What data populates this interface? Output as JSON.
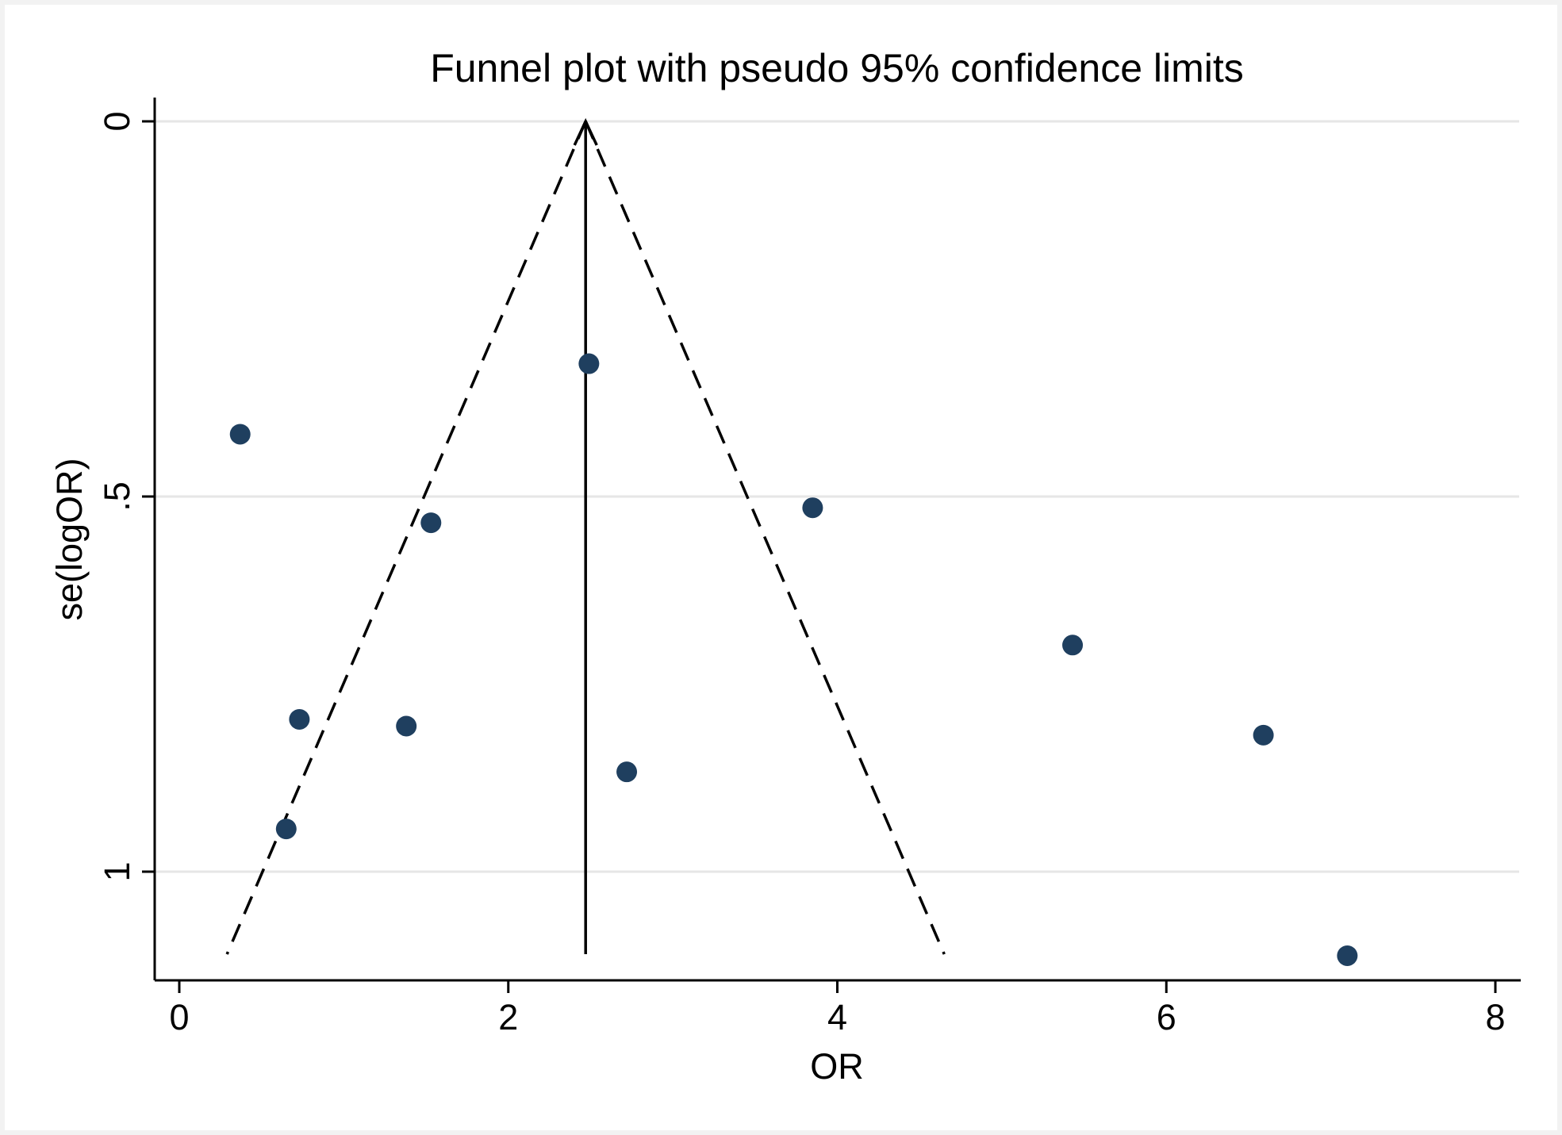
{
  "chart_data": {
    "type": "scatter",
    "title": "Funnel plot with pseudo 95% confidence limits",
    "xlabel": "OR",
    "ylabel": "se(logOR)",
    "xlim": [
      -0.15,
      8.15
    ],
    "ylim": [
      0,
      1.144
    ],
    "y_reversed": true,
    "x_ticks": [
      0,
      2,
      4,
      6,
      8
    ],
    "x_tick_labels": [
      "0",
      "2",
      "4",
      "6",
      "8"
    ],
    "y_ticks": [
      0,
      0.5,
      1
    ],
    "y_tick_labels": [
      "0",
      ".5",
      "1"
    ],
    "grid": "horizontal",
    "pooled_estimate": 2.47,
    "pooled_line": {
      "x": 2.47,
      "y_from": 0,
      "y_to": 1.11
    },
    "ci_lower": [
      {
        "x": 2.47,
        "y": 0
      },
      {
        "x": 0.29,
        "y": 1.11
      }
    ],
    "ci_upper": [
      {
        "x": 2.47,
        "y": 0
      },
      {
        "x": 4.65,
        "y": 1.11
      }
    ],
    "points": [
      {
        "x": 0.37,
        "y": 0.417
      },
      {
        "x": 2.49,
        "y": 0.323
      },
      {
        "x": 1.53,
        "y": 0.535
      },
      {
        "x": 3.85,
        "y": 0.515
      },
      {
        "x": 5.43,
        "y": 0.698
      },
      {
        "x": 0.73,
        "y": 0.797
      },
      {
        "x": 1.38,
        "y": 0.806
      },
      {
        "x": 6.59,
        "y": 0.818
      },
      {
        "x": 2.72,
        "y": 0.867
      },
      {
        "x": 0.65,
        "y": 0.943
      },
      {
        "x": 7.1,
        "y": 1.112
      }
    ],
    "colors": {
      "marker": "#1f3f5f",
      "line": "#000000",
      "grid": "#e6e6e6",
      "plot_background": "#ffffff",
      "page_background": "#f2f2f2"
    }
  }
}
